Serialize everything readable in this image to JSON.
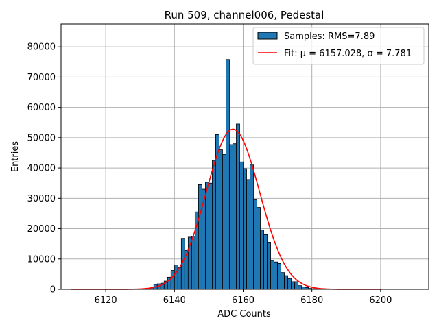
{
  "chart_data": {
    "type": "bar",
    "title": "Run 509, channel006, Pedestal",
    "xlabel": "ADC Counts",
    "ylabel": "Entries",
    "xlim": [
      6107,
      6214
    ],
    "ylim": [
      0,
      87500
    ],
    "xticks": [
      6120,
      6140,
      6160,
      6180,
      6200
    ],
    "yticks": [
      0,
      10000,
      20000,
      30000,
      40000,
      50000,
      60000,
      70000,
      80000
    ],
    "grid": true,
    "legend_position": "upper right",
    "histogram": {
      "name": "Samples: RMS=7.89",
      "color": "#1f77b4",
      "edge_color": "#000000",
      "bin_width": 1,
      "bin_left_edges": [
        6133,
        6134,
        6135,
        6136,
        6137,
        6138,
        6139,
        6140,
        6141,
        6142,
        6143,
        6144,
        6145,
        6146,
        6147,
        6148,
        6149,
        6150,
        6151,
        6152,
        6153,
        6154,
        6155,
        6156,
        6157,
        6158,
        6159,
        6160,
        6161,
        6162,
        6163,
        6164,
        6165,
        6166,
        6167,
        6168,
        6169,
        6170,
        6171,
        6172,
        6173,
        6174,
        6175,
        6176,
        6177,
        6178,
        6179,
        6180,
        6181
      ],
      "counts": [
        500,
        1600,
        1800,
        2000,
        2700,
        4000,
        6200,
        8000,
        7200,
        16800,
        12800,
        17200,
        17500,
        25500,
        34500,
        33000,
        35300,
        35000,
        42500,
        51000,
        46000,
        44500,
        75800,
        47700,
        48000,
        54500,
        42000,
        39800,
        36200,
        41000,
        29500,
        27000,
        19500,
        18000,
        15500,
        9500,
        9000,
        8500,
        5500,
        4500,
        3500,
        2500,
        2500,
        1200,
        800,
        600,
        300,
        200,
        100
      ]
    },
    "fit": {
      "name": "Fit: μ = 6157.028, σ = 7.781",
      "mu": 6157.028,
      "sigma": 7.781,
      "amplitude": 52800,
      "x_range": [
        6110,
        6200
      ],
      "color": "#ff0000"
    }
  }
}
